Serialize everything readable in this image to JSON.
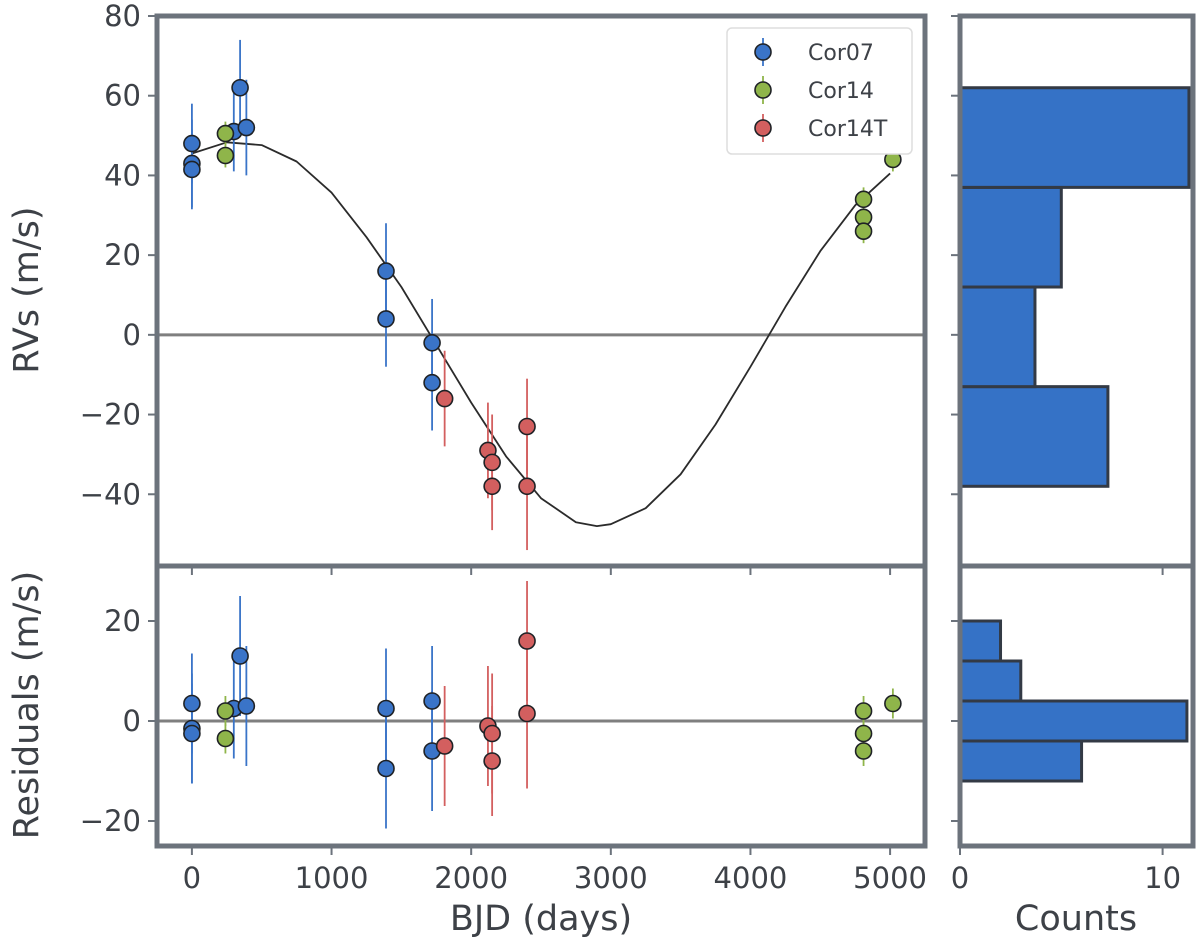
{
  "colors": {
    "Cor07": "#3a74c8",
    "Cor14": "#8fb54a",
    "Cor14T": "#d35f5f",
    "frame": "#6c737c",
    "zero_line": "#7f7f7f",
    "model": "#2b2b2b",
    "hist_fill": "#3572c6",
    "hist_edge": "#333a45"
  },
  "legend": {
    "entries": [
      "Cor07",
      "Cor14",
      "Cor14T"
    ],
    "placement": "upper-right"
  },
  "x_ticks": [
    0,
    1000,
    2000,
    3000,
    4000,
    5000
  ],
  "counts_ticks": [
    0,
    10
  ],
  "chart_data": [
    {
      "type": "scatter",
      "panel": "rv",
      "xlabel": "",
      "ylabel": "RVs",
      "ylabel_unit": "(m/s)",
      "xlim": [
        -250,
        5250
      ],
      "ylim": [
        -58,
        80
      ],
      "yticks": [
        -40,
        -20,
        0,
        20,
        40,
        60,
        80
      ],
      "zero_line": 0,
      "series": [
        {
          "name": "Cor07",
          "points": [
            {
              "x": 0,
              "y": 48,
              "err": 10
            },
            {
              "x": 0,
              "y": 43,
              "err": 11
            },
            {
              "x": 0,
              "y": 41.5,
              "err": 10
            },
            {
              "x": 300,
              "y": 51,
              "err": 10
            },
            {
              "x": 345,
              "y": 62,
              "err": 12
            },
            {
              "x": 390,
              "y": 52,
              "err": 12
            },
            {
              "x": 1390,
              "y": 16,
              "err": 12
            },
            {
              "x": 1390,
              "y": 4,
              "err": 12
            },
            {
              "x": 1720,
              "y": -2,
              "err": 11
            },
            {
              "x": 1720,
              "y": -12,
              "err": 12
            }
          ]
        },
        {
          "name": "Cor14",
          "points": [
            {
              "x": 240,
              "y": 50.5,
              "err": 3
            },
            {
              "x": 240,
              "y": 45,
              "err": 3
            },
            {
              "x": 4810,
              "y": 34,
              "err": 3
            },
            {
              "x": 4810,
              "y": 29.5,
              "err": 3
            },
            {
              "x": 4810,
              "y": 26,
              "err": 3
            },
            {
              "x": 5020,
              "y": 44,
              "err": 3
            }
          ]
        },
        {
          "name": "Cor14T",
          "points": [
            {
              "x": 1810,
              "y": -16,
              "err": 12
            },
            {
              "x": 2120,
              "y": -29,
              "err": 12
            },
            {
              "x": 2150,
              "y": -32,
              "err": 12
            },
            {
              "x": 2150,
              "y": -38,
              "err": 11
            },
            {
              "x": 2400,
              "y": -23,
              "err": 12
            },
            {
              "x": 2400,
              "y": -38,
              "err": 16
            }
          ]
        }
      ],
      "model_curve": {
        "type": "line",
        "x": [
          0,
          250,
          500,
          750,
          1000,
          1250,
          1500,
          1750,
          2000,
          2250,
          2500,
          2750,
          2900,
          3000,
          3250,
          3500,
          3750,
          4000,
          4250,
          4500,
          4750,
          5000
        ],
        "y": [
          45.5,
          48.3,
          47.6,
          43.5,
          35.7,
          24.5,
          12.0,
          -2.5,
          -17.0,
          -30.5,
          -41.0,
          -47.0,
          -48.0,
          -47.5,
          -43.5,
          -35.0,
          -22.5,
          -8.0,
          7.0,
          21.0,
          32.5,
          40.5
        ]
      }
    },
    {
      "type": "scatter",
      "panel": "residuals",
      "xlabel": "BJD (days)",
      "ylabel": "Residuals",
      "ylabel_unit": "(m/s)",
      "xlim": [
        -250,
        5250
      ],
      "ylim": [
        -25,
        31
      ],
      "yticks": [
        -20,
        0,
        20
      ],
      "zero_line": 0,
      "series": [
        {
          "name": "Cor07",
          "points": [
            {
              "x": 0,
              "y": 3.5,
              "err": 10
            },
            {
              "x": 0,
              "y": -1.5,
              "err": 11
            },
            {
              "x": 0,
              "y": -2.5,
              "err": 10
            },
            {
              "x": 300,
              "y": 2.5,
              "err": 10
            },
            {
              "x": 345,
              "y": 13,
              "err": 12
            },
            {
              "x": 390,
              "y": 3,
              "err": 12
            },
            {
              "x": 1390,
              "y": 2.5,
              "err": 12
            },
            {
              "x": 1390,
              "y": -9.5,
              "err": 12
            },
            {
              "x": 1720,
              "y": 4,
              "err": 11
            },
            {
              "x": 1720,
              "y": -6,
              "err": 12
            }
          ]
        },
        {
          "name": "Cor14",
          "points": [
            {
              "x": 240,
              "y": 2,
              "err": 3
            },
            {
              "x": 240,
              "y": -3.5,
              "err": 3
            },
            {
              "x": 4810,
              "y": 2,
              "err": 3
            },
            {
              "x": 4810,
              "y": -2.5,
              "err": 3
            },
            {
              "x": 4810,
              "y": -6,
              "err": 3
            },
            {
              "x": 5020,
              "y": 3.5,
              "err": 3
            }
          ]
        },
        {
          "name": "Cor14T",
          "points": [
            {
              "x": 1810,
              "y": -5,
              "err": 12
            },
            {
              "x": 2120,
              "y": -1,
              "err": 12
            },
            {
              "x": 2150,
              "y": -2.5,
              "err": 12
            },
            {
              "x": 2150,
              "y": -8,
              "err": 11
            },
            {
              "x": 2400,
              "y": 16,
              "err": 12
            },
            {
              "x": 2400,
              "y": 1.5,
              "err": 15
            }
          ]
        }
      ]
    },
    {
      "type": "bar",
      "orientation": "horizontal",
      "panel": "rv-histogram",
      "xlabel": "",
      "xlim": [
        0,
        11.5
      ],
      "ylim": [
        -58,
        80
      ],
      "bins": [
        {
          "from": -38,
          "to": -13,
          "count": 7.3
        },
        {
          "from": -13,
          "to": 12,
          "count": 3.7
        },
        {
          "from": 12,
          "to": 37,
          "count": 5
        },
        {
          "from": 37,
          "to": 62,
          "count": 11.3
        }
      ]
    },
    {
      "type": "bar",
      "orientation": "horizontal",
      "panel": "residuals-histogram",
      "xlabel": "Counts",
      "xlim": [
        0,
        11.5
      ],
      "ylim": [
        -25,
        31
      ],
      "bins": [
        {
          "from": -12,
          "to": -4,
          "count": 6
        },
        {
          "from": -4,
          "to": 4,
          "count": 11.2
        },
        {
          "from": 4,
          "to": 12,
          "count": 3
        },
        {
          "from": 12,
          "to": 20,
          "count": 2
        }
      ]
    }
  ]
}
